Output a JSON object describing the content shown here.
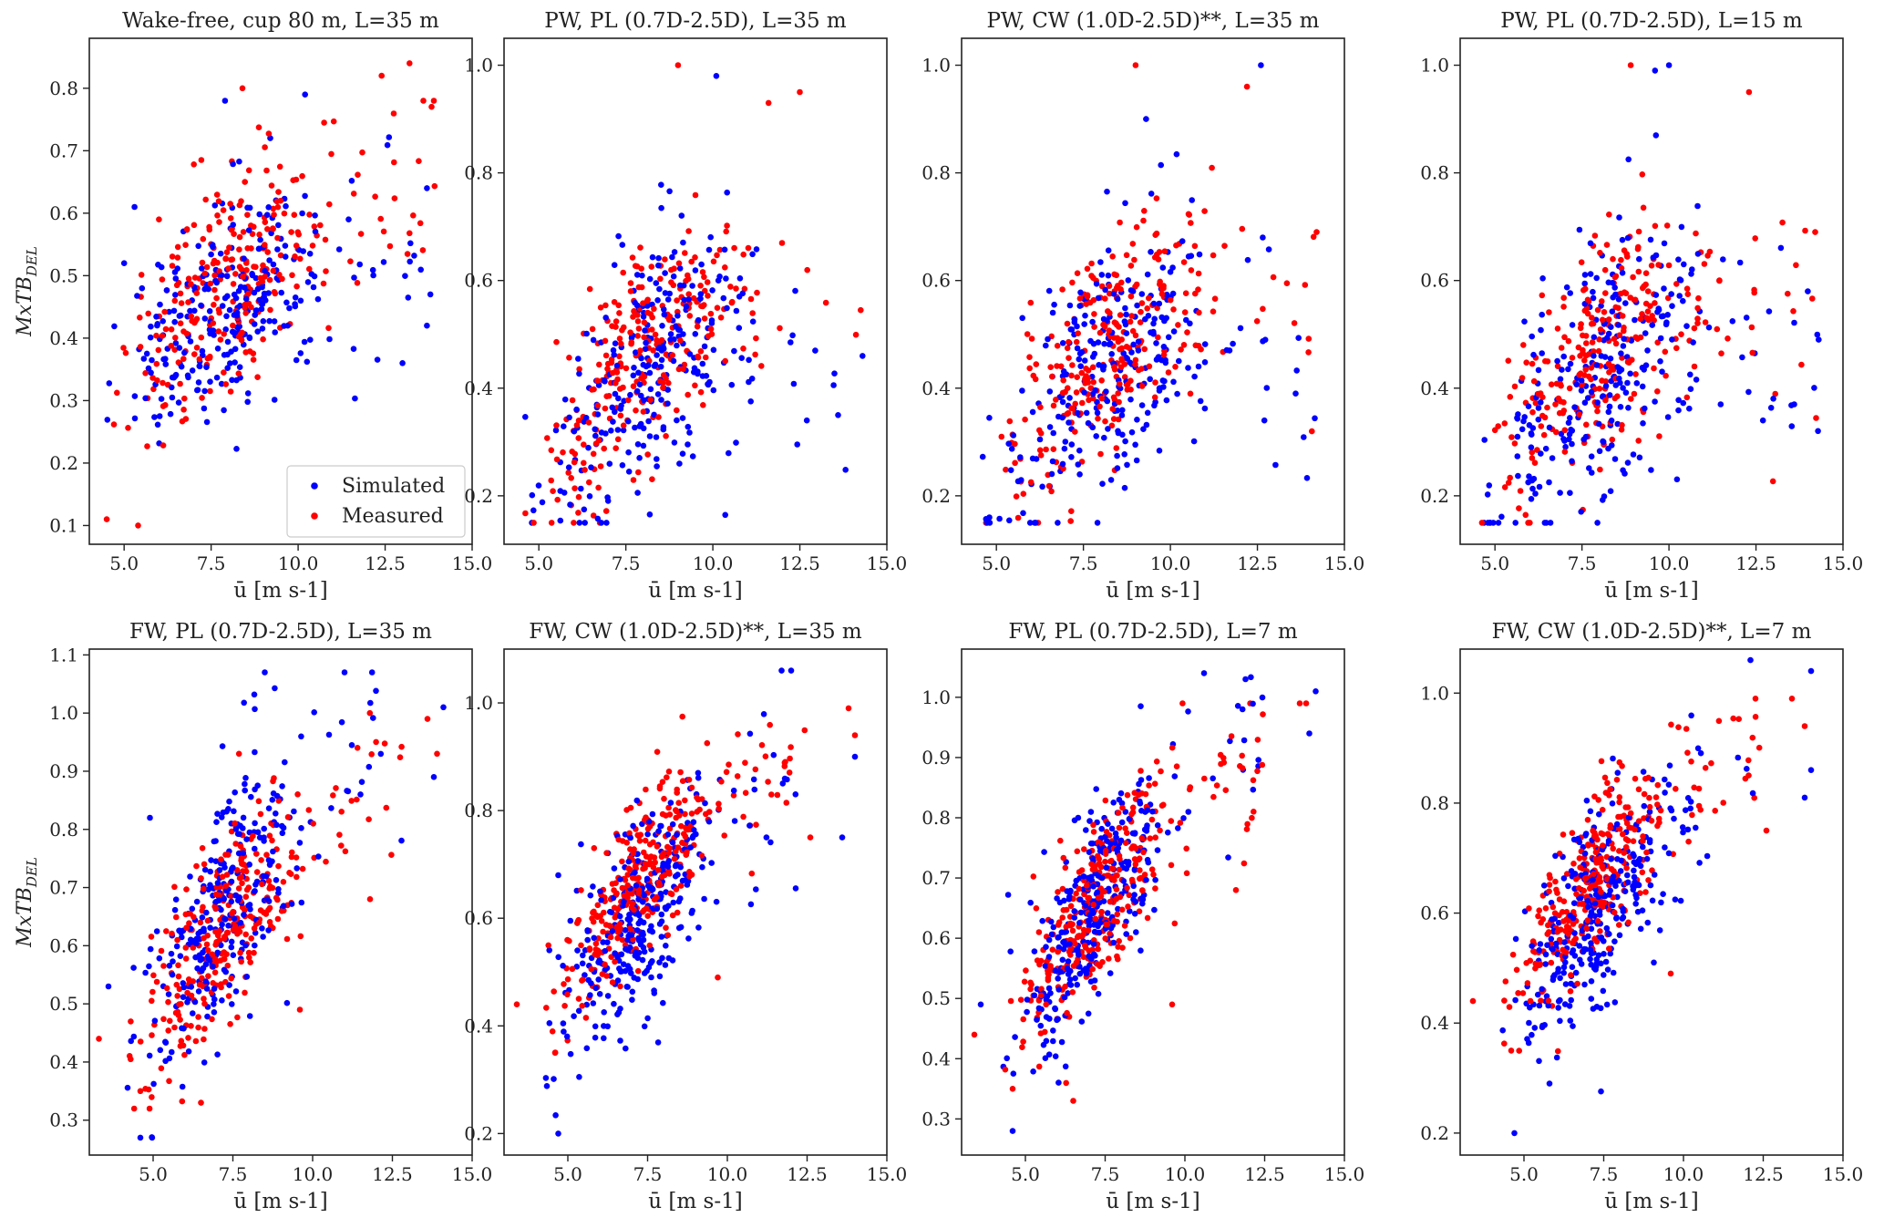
{
  "figure": {
    "series_names": [
      "Simulated",
      "Measured"
    ],
    "colors": {
      "simulated": "#0000ff",
      "measured": "#ff0000"
    },
    "xlabel": "ū [m s-1]",
    "ylabel_main": "MxTB",
    "ylabel_sub": "DEL",
    "legend_location": "lower-right"
  },
  "chart_data": [
    {
      "type": "scatter",
      "title": "Wake-free, cup 80 m, L=35 m",
      "xlim": [
        4.0,
        15.0
      ],
      "ylim": [
        0.07,
        0.88
      ],
      "xticks": [
        5.0,
        7.5,
        10.0,
        12.5,
        15.0
      ],
      "xtick_labels": [
        "5.0",
        "7.5",
        "10.0",
        "12.5",
        "15.0"
      ],
      "yticks": [
        0.1,
        0.2,
        0.3,
        0.4,
        0.5,
        0.6,
        0.7,
        0.8
      ],
      "ytick_labels": [
        "0.1",
        "0.2",
        "0.3",
        "0.4",
        "0.5",
        "0.6",
        "0.7",
        "0.8"
      ],
      "show_ylabel": true,
      "show_legend": true,
      "generator": {
        "x_range": [
          4.5,
          14.0
        ],
        "n": 280,
        "seed": 11,
        "sim": {
          "a": 0.05,
          "b": 0.07,
          "c": -0.0025,
          "sd": 0.075,
          "ymin": 0.1,
          "ymax": 0.8
        },
        "meas": {
          "a": -0.14,
          "b": 0.105,
          "c": -0.0034,
          "sd": 0.085,
          "ymin": 0.1,
          "ymax": 0.84
        }
      },
      "series": [
        {
          "name": "Simulated",
          "points": [
            [
              13.0,
              0.36
            ],
            [
              13.8,
              0.47
            ],
            [
              5.0,
              0.52
            ],
            [
              5.3,
              0.61
            ],
            [
              9.2,
              0.72
            ],
            [
              10.2,
              0.79
            ],
            [
              7.9,
              0.78
            ],
            [
              13.7,
              0.42
            ],
            [
              13.7,
              0.64
            ]
          ]
        },
        {
          "name": "Measured",
          "points": [
            [
              4.5,
              0.11
            ],
            [
              5.4,
              0.1
            ],
            [
              13.2,
              0.84
            ],
            [
              12.4,
              0.82
            ],
            [
              8.4,
              0.8
            ],
            [
              13.6,
              0.78
            ],
            [
              13.9,
              0.78
            ],
            [
              6.0,
              0.59
            ]
          ]
        }
      ]
    },
    {
      "type": "scatter",
      "title": "PW, PL (0.7D-2.5D), L=35 m",
      "xlim": [
        4.0,
        15.0
      ],
      "ylim": [
        0.11,
        1.05
      ],
      "xticks": [
        5.0,
        7.5,
        10.0,
        12.5,
        15.0
      ],
      "xtick_labels": [
        "5.0",
        "7.5",
        "10.0",
        "12.5",
        "15.0"
      ],
      "yticks": [
        0.2,
        0.4,
        0.6,
        0.8,
        1.0
      ],
      "ytick_labels": [
        "0.2",
        "0.4",
        "0.6",
        "0.8",
        "1.0"
      ],
      "show_ylabel": false,
      "show_legend": false,
      "generator": {
        "x_range": [
          4.6,
          14.3
        ],
        "n": 280,
        "seed": 23,
        "sim": {
          "a": -0.55,
          "b": 0.2,
          "c": -0.0095,
          "sd": 0.115,
          "ymin": 0.15,
          "ymax": 0.98
        },
        "meas": {
          "a": -0.5,
          "b": 0.19,
          "c": -0.0085,
          "sd": 0.095,
          "ymin": 0.15,
          "ymax": 0.97
        }
      },
      "series": [
        {
          "name": "Simulated",
          "points": [
            [
              10.1,
              0.98
            ],
            [
              12.7,
              0.34
            ],
            [
              13.6,
              0.35
            ],
            [
              14.3,
              0.46
            ],
            [
              4.8,
              0.15
            ]
          ]
        },
        {
          "name": "Measured",
          "points": [
            [
              9.0,
              1.0
            ],
            [
              12.5,
              0.95
            ],
            [
              6.0,
              0.15
            ],
            [
              11.6,
              0.93
            ]
          ]
        }
      ]
    },
    {
      "type": "scatter",
      "title": "PW, CW (1.0D-2.5D)**, L=35 m",
      "xlim": [
        4.0,
        15.0
      ],
      "ylim": [
        0.11,
        1.05
      ],
      "xticks": [
        5.0,
        7.5,
        10.0,
        12.5,
        15.0
      ],
      "xtick_labels": [
        "5.0",
        "7.5",
        "10.0",
        "12.5",
        "15.0"
      ],
      "yticks": [
        0.2,
        0.4,
        0.6,
        0.8,
        1.0
      ],
      "ytick_labels": [
        "0.2",
        "0.4",
        "0.6",
        "0.8",
        "1.0"
      ],
      "show_ylabel": false,
      "show_legend": false,
      "generator": {
        "x_range": [
          4.6,
          14.3
        ],
        "n": 280,
        "seed": 37,
        "sim": {
          "a": -0.55,
          "b": 0.2,
          "c": -0.0095,
          "sd": 0.115,
          "ymin": 0.15,
          "ymax": 0.98
        },
        "meas": {
          "a": -0.5,
          "b": 0.19,
          "c": -0.0085,
          "sd": 0.095,
          "ymin": 0.15,
          "ymax": 0.97
        }
      },
      "series": [
        {
          "name": "Simulated",
          "points": [
            [
              12.6,
              1.0
            ],
            [
              12.7,
              0.34
            ],
            [
              13.6,
              0.39
            ],
            [
              4.8,
              0.16
            ],
            [
              9.3,
              0.9
            ]
          ]
        },
        {
          "name": "Measured",
          "points": [
            [
              9.0,
              1.0
            ],
            [
              12.2,
              0.96
            ],
            [
              6.2,
              0.15
            ],
            [
              14.2,
              0.69
            ]
          ]
        }
      ]
    },
    {
      "type": "scatter",
      "title": "PW, PL (0.7D-2.5D), L=15 m",
      "xlim": [
        4.0,
        15.0
      ],
      "ylim": [
        0.11,
        1.05
      ],
      "xticks": [
        5.0,
        7.5,
        10.0,
        12.5,
        15.0
      ],
      "xtick_labels": [
        "5.0",
        "7.5",
        "10.0",
        "12.5",
        "15.0"
      ],
      "yticks": [
        0.2,
        0.4,
        0.6,
        0.8,
        1.0
      ],
      "ytick_labels": [
        "0.2",
        "0.4",
        "0.6",
        "0.8",
        "1.0"
      ],
      "show_ylabel": false,
      "show_legend": false,
      "generator": {
        "x_range": [
          4.6,
          14.3
        ],
        "n": 280,
        "seed": 53,
        "sim": {
          "a": -0.55,
          "b": 0.2,
          "c": -0.0095,
          "sd": 0.115,
          "ymin": 0.15,
          "ymax": 0.98
        },
        "meas": {
          "a": -0.5,
          "b": 0.19,
          "c": -0.0085,
          "sd": 0.095,
          "ymin": 0.15,
          "ymax": 0.97
        }
      },
      "series": [
        {
          "name": "Simulated",
          "points": [
            [
              10.0,
              1.0
            ],
            [
              12.7,
              0.34
            ],
            [
              13.6,
              0.37
            ],
            [
              14.3,
              0.49
            ],
            [
              4.8,
              0.15
            ],
            [
              9.6,
              0.99
            ]
          ]
        },
        {
          "name": "Measured",
          "points": [
            [
              8.9,
              1.0
            ],
            [
              12.3,
              0.95
            ],
            [
              6.0,
              0.15
            ],
            [
              14.2,
              0.69
            ]
          ]
        }
      ]
    },
    {
      "type": "scatter",
      "title": "FW, PL (0.7D-2.5D), L=35 m",
      "xlim": [
        3.0,
        15.0
      ],
      "ylim": [
        0.24,
        1.11
      ],
      "xticks": [
        5.0,
        7.5,
        10.0,
        12.5,
        15.0
      ],
      "xtick_labels": [
        "5.0",
        "7.5",
        "10.0",
        "12.5",
        "15.0"
      ],
      "yticks": [
        0.3,
        0.4,
        0.5,
        0.6,
        0.7,
        0.8,
        0.9,
        1.0,
        1.1
      ],
      "ytick_labels": [
        "0.3",
        "0.4",
        "0.5",
        "0.6",
        "0.7",
        "0.8",
        "0.9",
        "1.0",
        "1.1"
      ],
      "show_ylabel": true,
      "show_legend": false,
      "generator": {
        "x_range": [
          4.2,
          12.8
        ],
        "n": 300,
        "seed": 71,
        "sim": {
          "a": -0.05,
          "b": 0.125,
          "c": -0.0035,
          "sd": 0.1,
          "ymin": 0.27,
          "ymax": 1.07
        },
        "meas": {
          "a": -0.06,
          "b": 0.125,
          "c": -0.004,
          "sd": 0.075,
          "ymin": 0.32,
          "ymax": 1.0
        }
      },
      "series": [
        {
          "name": "Simulated",
          "points": [
            [
              4.6,
              0.27
            ],
            [
              14.1,
              1.01
            ],
            [
              13.8,
              0.89
            ],
            [
              3.6,
              0.53
            ],
            [
              4.9,
              0.82
            ],
            [
              8.5,
              1.07
            ],
            [
              11.0,
              1.07
            ]
          ]
        },
        {
          "name": "Measured",
          "points": [
            [
              3.3,
              0.44
            ],
            [
              13.6,
              0.99
            ],
            [
              13.9,
              0.93
            ],
            [
              11.8,
              0.68
            ],
            [
              9.6,
              0.49
            ],
            [
              6.5,
              0.33
            ],
            [
              4.6,
              0.35
            ]
          ]
        }
      ]
    },
    {
      "type": "scatter",
      "title": "FW, CW (1.0D-2.5D)**, L=35 m",
      "xlim": [
        3.0,
        15.0
      ],
      "ylim": [
        0.16,
        1.1
      ],
      "xticks": [
        5.0,
        7.5,
        10.0,
        12.5,
        15.0
      ],
      "xtick_labels": [
        "5.0",
        "7.5",
        "10.0",
        "12.5",
        "15.0"
      ],
      "yticks": [
        0.2,
        0.4,
        0.6,
        0.8,
        1.0
      ],
      "ytick_labels": [
        "0.2",
        "0.4",
        "0.6",
        "0.8",
        "1.0"
      ],
      "show_ylabel": false,
      "show_legend": false,
      "generator": {
        "x_range": [
          4.3,
          12.5
        ],
        "n": 330,
        "seed": 89,
        "sim": {
          "a": -0.08,
          "b": 0.12,
          "c": -0.0035,
          "sd": 0.085,
          "ymin": 0.2,
          "ymax": 1.06
        },
        "meas": {
          "a": -0.15,
          "b": 0.155,
          "c": -0.0058,
          "sd": 0.07,
          "ymin": 0.3,
          "ymax": 0.99
        }
      },
      "series": [
        {
          "name": "Simulated",
          "points": [
            [
              4.7,
              0.2
            ],
            [
              13.6,
              0.75
            ],
            [
              14.0,
              0.9
            ],
            [
              12.0,
              1.06
            ],
            [
              11.7,
              1.06
            ],
            [
              4.7,
              0.68
            ]
          ]
        },
        {
          "name": "Measured",
          "points": [
            [
              3.4,
              0.44
            ],
            [
              13.8,
              0.99
            ],
            [
              14.0,
              0.94
            ],
            [
              12.6,
              0.75
            ],
            [
              9.7,
              0.49
            ],
            [
              4.6,
              0.35
            ]
          ]
        }
      ]
    },
    {
      "type": "scatter",
      "title": "FW, PL (0.7D-2.5D), L=7 m",
      "xlim": [
        3.0,
        15.0
      ],
      "ylim": [
        0.24,
        1.08
      ],
      "xticks": [
        5.0,
        7.5,
        10.0,
        12.5,
        15.0
      ],
      "xtick_labels": [
        "5.0",
        "7.5",
        "10.0",
        "12.5",
        "15.0"
      ],
      "yticks": [
        0.3,
        0.4,
        0.5,
        0.6,
        0.7,
        0.8,
        0.9,
        1.0
      ],
      "ytick_labels": [
        "0.3",
        "0.4",
        "0.5",
        "0.6",
        "0.7",
        "0.8",
        "0.9",
        "1.0"
      ],
      "show_ylabel": false,
      "show_legend": false,
      "generator": {
        "x_range": [
          4.3,
          12.5
        ],
        "n": 330,
        "seed": 97,
        "sim": {
          "a": -0.06,
          "b": 0.125,
          "c": -0.0036,
          "sd": 0.08,
          "ymin": 0.28,
          "ymax": 1.04
        },
        "meas": {
          "a": -0.1,
          "b": 0.14,
          "c": -0.0048,
          "sd": 0.065,
          "ymin": 0.32,
          "ymax": 0.99
        }
      },
      "series": [
        {
          "name": "Simulated",
          "points": [
            [
              4.6,
              0.28
            ],
            [
              14.1,
              1.01
            ],
            [
              13.9,
              0.94
            ],
            [
              3.6,
              0.49
            ],
            [
              10.6,
              1.04
            ],
            [
              11.9,
              1.03
            ]
          ]
        },
        {
          "name": "Measured",
          "points": [
            [
              3.4,
              0.44
            ],
            [
              13.6,
              0.99
            ],
            [
              13.8,
              0.99
            ],
            [
              11.6,
              0.68
            ],
            [
              9.6,
              0.49
            ],
            [
              6.5,
              0.33
            ],
            [
              4.6,
              0.35
            ]
          ]
        }
      ]
    },
    {
      "type": "scatter",
      "title": "FW, CW (1.0D-2.5D)**, L=7 m",
      "xlim": [
        3.0,
        15.0
      ],
      "ylim": [
        0.16,
        1.08
      ],
      "xticks": [
        5.0,
        7.5,
        10.0,
        12.5,
        15.0
      ],
      "xtick_labels": [
        "5.0",
        "7.5",
        "10.0",
        "12.5",
        "15.0"
      ],
      "yticks": [
        0.2,
        0.4,
        0.6,
        0.8,
        1.0
      ],
      "ytick_labels": [
        "0.2",
        "0.4",
        "0.6",
        "0.8",
        "1.0"
      ],
      "show_ylabel": false,
      "show_legend": false,
      "generator": {
        "x_range": [
          4.3,
          12.5
        ],
        "n": 330,
        "seed": 113,
        "sim": {
          "a": -0.08,
          "b": 0.12,
          "c": -0.0035,
          "sd": 0.085,
          "ymin": 0.2,
          "ymax": 1.06
        },
        "meas": {
          "a": -0.15,
          "b": 0.155,
          "c": -0.0058,
          "sd": 0.07,
          "ymin": 0.3,
          "ymax": 0.99
        }
      },
      "series": [
        {
          "name": "Simulated",
          "points": [
            [
              4.7,
              0.2
            ],
            [
              13.8,
              0.81
            ],
            [
              14.0,
              0.86
            ],
            [
              14.0,
              1.04
            ],
            [
              12.1,
              1.06
            ],
            [
              5.8,
              0.29
            ]
          ]
        },
        {
          "name": "Measured",
          "points": [
            [
              3.4,
              0.44
            ],
            [
              13.4,
              0.99
            ],
            [
              13.8,
              0.94
            ],
            [
              12.6,
              0.75
            ],
            [
              9.6,
              0.49
            ],
            [
              4.6,
              0.35
            ]
          ]
        }
      ]
    }
  ]
}
